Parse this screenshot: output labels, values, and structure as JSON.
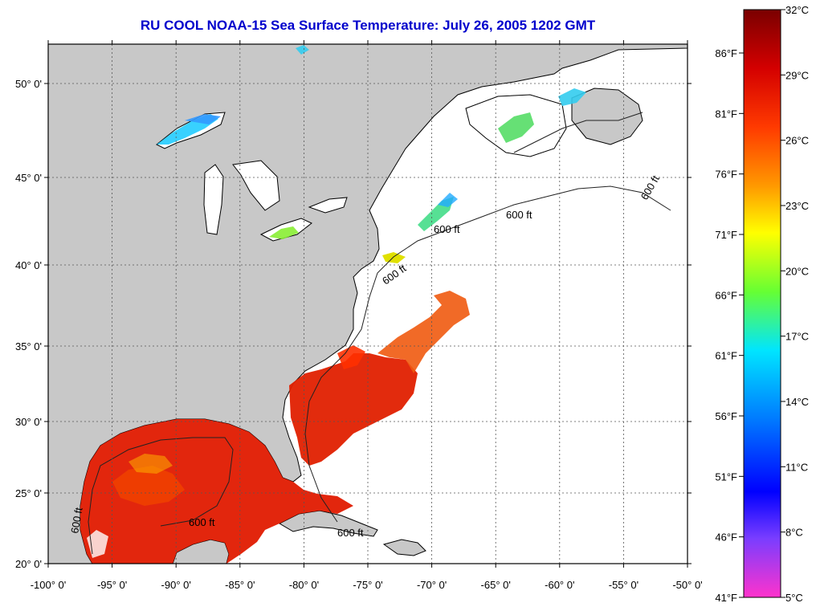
{
  "title": "RU COOL  NOAA-15  Sea Surface Temperature:  July 26, 2005 1202 GMT",
  "map": {
    "lon_ticks": [
      "-100° 0'",
      "-95° 0'",
      "-90° 0'",
      "-85° 0'",
      "-80° 0'",
      "-75° 0'",
      "-70° 0'",
      "-65° 0'",
      "-60° 0'",
      "-55° 0'",
      "-50° 0'"
    ],
    "lat_ticks": [
      "50° 0'",
      "45° 0'",
      "40° 0'",
      "35° 0'",
      "30° 0'",
      "25° 0'",
      "20° 0'"
    ],
    "depth_contour_label": "600 ft",
    "colors": {
      "land": "#c8c8c8",
      "ocean_no_data": "#ffffff",
      "grid": "#555555"
    }
  },
  "colorbar": {
    "celsius": [
      "32°C",
      "29°C",
      "26°C",
      "23°C",
      "20°C",
      "17°C",
      "14°C",
      "11°C",
      "8°C",
      "5°C"
    ],
    "fahrenheit": [
      "86°F",
      "81°F",
      "76°F",
      "71°F",
      "66°F",
      "61°F",
      "56°F",
      "51°F",
      "46°F",
      "41°F"
    ]
  }
}
